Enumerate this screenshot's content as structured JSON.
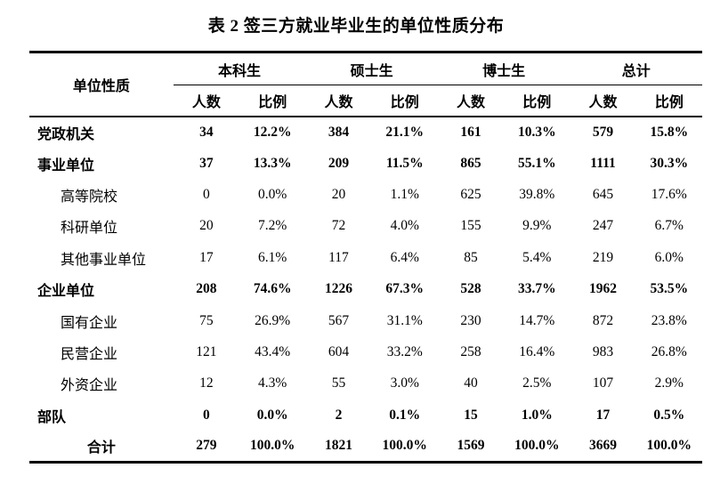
{
  "title": "表 2 签三方就业毕业生的单位性质分布",
  "table": {
    "row_header_label": "单位性质",
    "groups": [
      {
        "label": "本科生"
      },
      {
        "label": "硕士生"
      },
      {
        "label": "博士生"
      },
      {
        "label": "总计"
      }
    ],
    "subheaders": {
      "count": "人数",
      "ratio": "比例"
    },
    "rows": [
      {
        "label": "党政机关",
        "style": "category",
        "values": [
          "34",
          "12.2%",
          "384",
          "21.1%",
          "161",
          "10.3%",
          "579",
          "15.8%"
        ]
      },
      {
        "label": "事业单位",
        "style": "category",
        "values": [
          "37",
          "13.3%",
          "209",
          "11.5%",
          "865",
          "55.1%",
          "1111",
          "30.3%"
        ]
      },
      {
        "label": "高等院校",
        "style": "sub",
        "values": [
          "0",
          "0.0%",
          "20",
          "1.1%",
          "625",
          "39.8%",
          "645",
          "17.6%"
        ]
      },
      {
        "label": "科研单位",
        "style": "sub",
        "values": [
          "20",
          "7.2%",
          "72",
          "4.0%",
          "155",
          "9.9%",
          "247",
          "6.7%"
        ]
      },
      {
        "label": "其他事业单位",
        "style": "sub",
        "values": [
          "17",
          "6.1%",
          "117",
          "6.4%",
          "85",
          "5.4%",
          "219",
          "6.0%"
        ]
      },
      {
        "label": "企业单位",
        "style": "category",
        "values": [
          "208",
          "74.6%",
          "1226",
          "67.3%",
          "528",
          "33.7%",
          "1962",
          "53.5%"
        ]
      },
      {
        "label": "国有企业",
        "style": "sub",
        "values": [
          "75",
          "26.9%",
          "567",
          "31.1%",
          "230",
          "14.7%",
          "872",
          "23.8%"
        ]
      },
      {
        "label": "民营企业",
        "style": "sub",
        "values": [
          "121",
          "43.4%",
          "604",
          "33.2%",
          "258",
          "16.4%",
          "983",
          "26.8%"
        ]
      },
      {
        "label": "外资企业",
        "style": "sub",
        "values": [
          "12",
          "4.3%",
          "55",
          "3.0%",
          "40",
          "2.5%",
          "107",
          "2.9%"
        ]
      },
      {
        "label": "部队",
        "style": "category",
        "values": [
          "0",
          "0.0%",
          "2",
          "0.1%",
          "15",
          "1.0%",
          "17",
          "0.5%"
        ]
      },
      {
        "label": "合计",
        "style": "total",
        "values": [
          "279",
          "100.0%",
          "1821",
          "100.0%",
          "1569",
          "100.0%",
          "3669",
          "100.0%"
        ]
      }
    ]
  }
}
